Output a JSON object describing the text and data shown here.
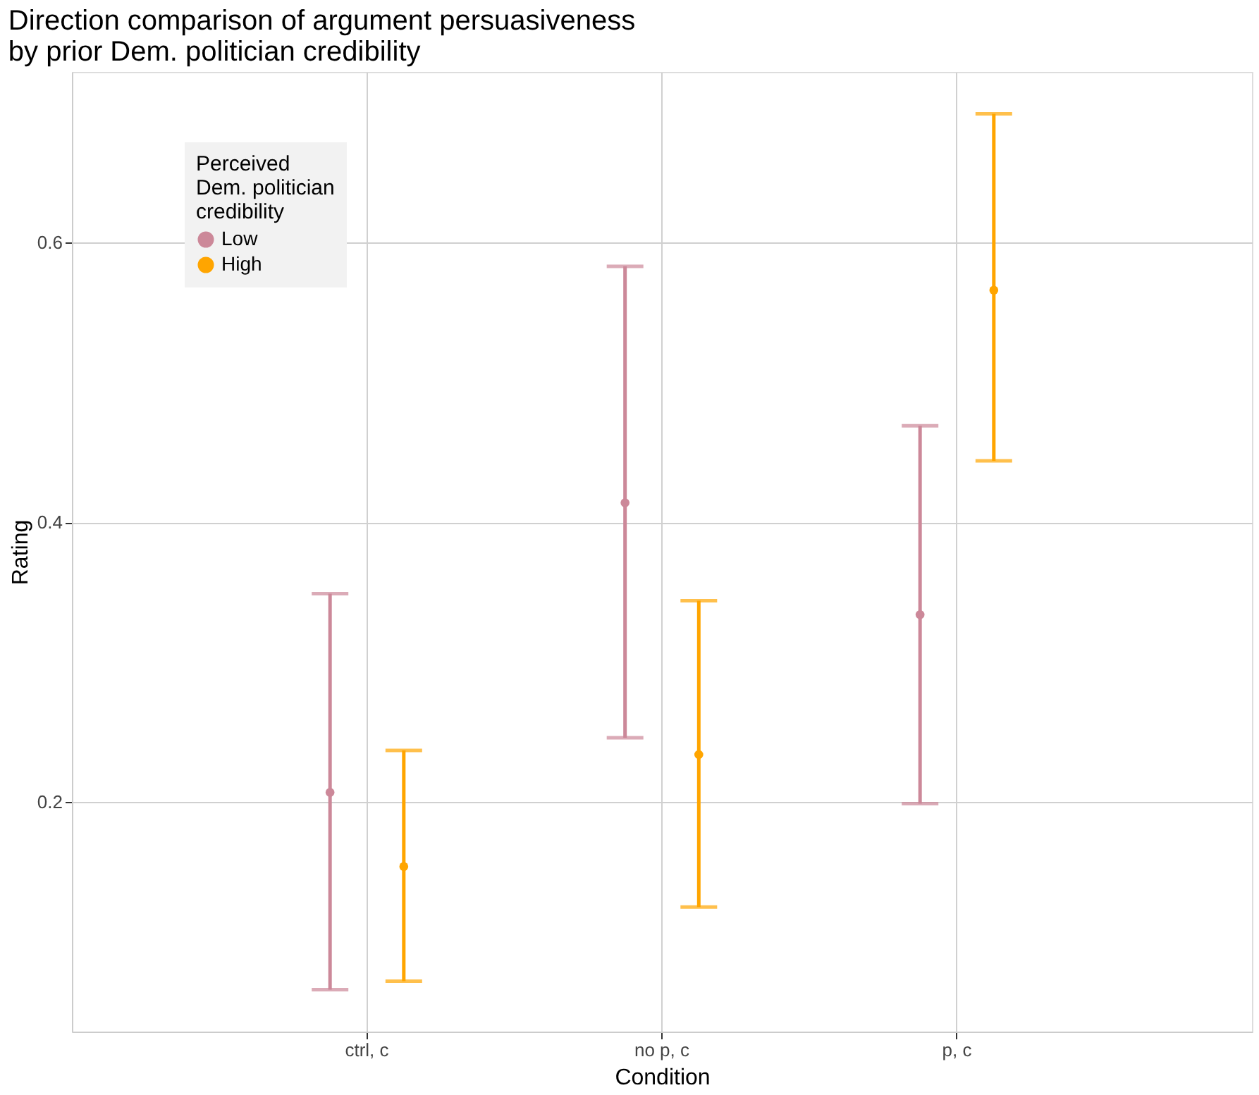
{
  "chart_data": {
    "type": "scatter",
    "title": "Direction comparison of argument persuasiveness\nby prior Dem. politician credibility",
    "xlabel": "Condition",
    "ylabel": "Rating",
    "legend_title": "Perceived\nDem. politician\ncredibility",
    "categories": [
      "ctrl, c",
      "no p, c",
      "p, c"
    ],
    "series": [
      {
        "name": "Low",
        "color": "#cc8899",
        "values": [
          0.207,
          0.414,
          0.334
        ],
        "errors": [
          [
            0.066,
            0.349
          ],
          [
            0.246,
            0.583
          ],
          [
            0.199,
            0.469
          ]
        ]
      },
      {
        "name": "High",
        "color": "#ffa500",
        "values": [
          0.154,
          0.234,
          0.566
        ],
        "errors": [
          [
            0.072,
            0.237
          ],
          [
            0.125,
            0.344
          ],
          [
            0.444,
            0.692
          ]
        ]
      }
    ],
    "ylim": [
      0.036,
      0.722
    ],
    "yticks": [
      0.2,
      0.4,
      0.6
    ],
    "grid": true,
    "legend": "top left",
    "marker": "circle"
  }
}
